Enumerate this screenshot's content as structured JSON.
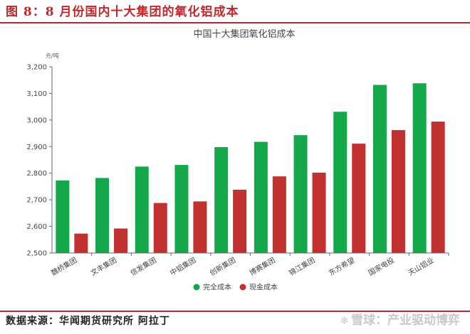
{
  "figure": {
    "title": "图 8：8 月份国内十大集团的氧化铝成本",
    "source": "数据来源：华闻期货研究所  阿拉丁",
    "watermark": "雪球：产业驱动博弈",
    "watermark_icon": "snowball-logo-icon",
    "accent_color": "#c0282d"
  },
  "chart_data": {
    "type": "bar",
    "title": "中国十大集团氧化铝成本",
    "ylabel": "元/吨",
    "xlabel": "",
    "ylim": [
      2500,
      3200
    ],
    "yticks": [
      2500,
      2600,
      2700,
      2800,
      2900,
      3000,
      3100,
      3200
    ],
    "ytick_labels": [
      "2,500",
      "2,600",
      "2,700",
      "2,800",
      "2,900",
      "3,000",
      "3,100",
      "3,200"
    ],
    "grid": false,
    "legend_position": "bottom",
    "categories": [
      "魏桥集团",
      "文丰集团",
      "信发集团",
      "中铝集团",
      "创新集团",
      "博赛集团",
      "锦江集团",
      "东方希望",
      "国家电投",
      "天山铝业"
    ],
    "series": [
      {
        "name": "完全成本",
        "color": "#15a84a",
        "values": [
          2773,
          2782,
          2825,
          2831,
          2898,
          2918,
          2943,
          3031,
          3132,
          3138
        ]
      },
      {
        "name": "现金成本",
        "color": "#c0312f",
        "values": [
          2573,
          2592,
          2688,
          2694,
          2738,
          2788,
          2802,
          2911,
          2962,
          2994
        ]
      }
    ]
  }
}
